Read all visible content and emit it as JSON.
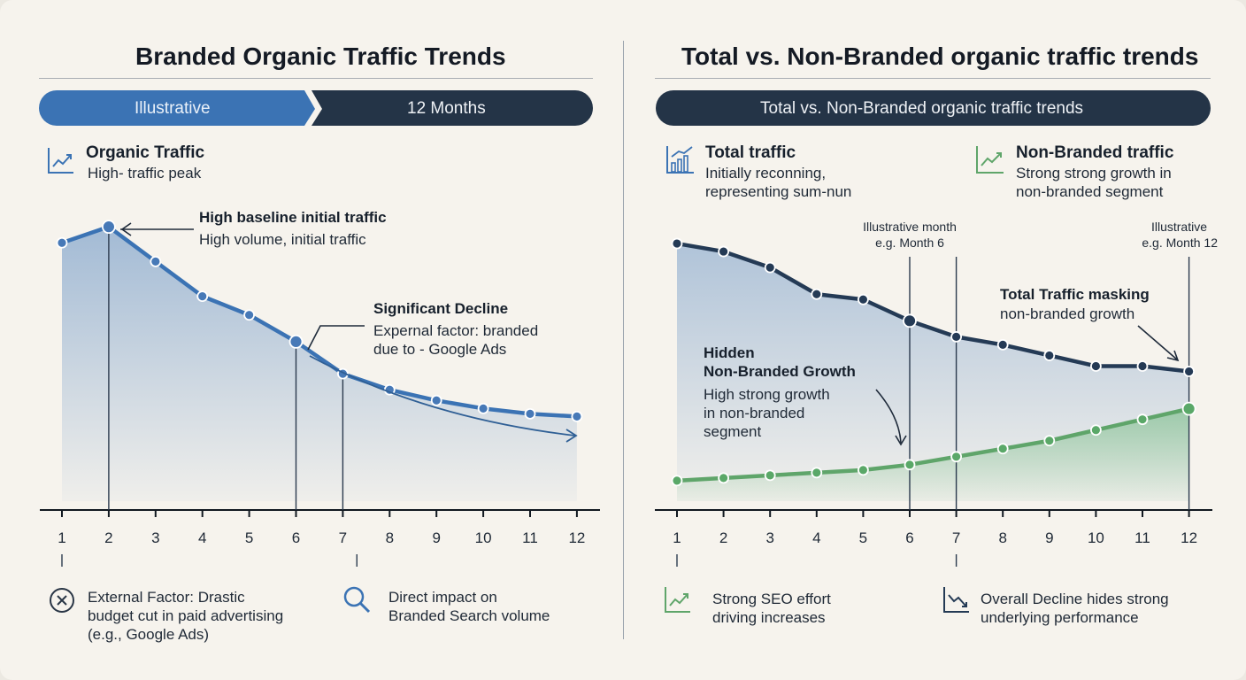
{
  "left": {
    "title": "Branded Organic Traffic Trends",
    "tab_left": "Illustrative",
    "tab_right": "12 Months",
    "legend_title": "Organic Traffic",
    "legend_sub": "High- traffic peak",
    "ann_peak_title": "High baseline initial traffic",
    "ann_peak_sub": "High volume, initial traffic",
    "ann_decline_title": "Significant Decline",
    "ann_decline_sub1": "Expernal factor: branded",
    "ann_decline_sub2": "due to - Google Ads",
    "foot1_line1": "External Factor: Drastic",
    "foot1_line2": "budget cut in paid advertising",
    "foot1_line3": "(e.g., Google Ads)",
    "foot2_line1": "Direct impact on",
    "foot2_line2": "Branded Search volume"
  },
  "right": {
    "title": "Total vs. Non-Branded organic traffic trends",
    "banner": "Total vs. Non-Branded organic traffic trends",
    "legend1_title": "Total traffic",
    "legend1_sub1": "Initially reconning,",
    "legend1_sub2": "representing sum-nun",
    "legend2_title": "Non-Branded traffic",
    "legend2_sub1": "Strong strong growth in",
    "legend2_sub2": "non-branded segment",
    "marker6_line1": "Illustrative month",
    "marker6_line2": "e.g. Month 6",
    "marker12_line1": "Illustrative",
    "marker12_line2": "e.g. Month 12",
    "ann_hidden_title1": "Hidden",
    "ann_hidden_title2": "Non-Branded Growth",
    "ann_hidden_sub1": "High strong growth",
    "ann_hidden_sub2": "in non-branded",
    "ann_hidden_sub3": "segment",
    "ann_mask_title": "Total Traffic masking",
    "ann_mask_sub": "non-branded growth",
    "foot1_line1": "Strong SEO effort",
    "foot1_line2": "driving increases",
    "foot2_line1": "Overall Decline hides strong",
    "foot2_line2": "underlying performance"
  },
  "colors": {
    "branded_line": "#3b73b4",
    "total_line": "#243a55",
    "nonbranded_line": "#5fa56a",
    "tab_blue": "#3b73b4",
    "tab_navy": "#243447"
  },
  "icons": {
    "left_legend": "trend-chart-icon",
    "left_foot1": "x-circle-icon",
    "left_foot2": "magnifier-icon",
    "right_legend1": "bar-chart-trend-icon",
    "right_legend2": "trend-chart-icon",
    "right_foot1": "trend-up-icon",
    "right_foot2": "trend-down-icon"
  },
  "chart_data": [
    {
      "type": "area",
      "title": "Branded Organic Traffic Trends",
      "x": [
        1,
        2,
        3,
        4,
        5,
        6,
        7,
        8,
        9,
        10,
        11,
        12
      ],
      "xticks": [
        "1",
        "2",
        "3",
        "4",
        "5",
        "6",
        "7",
        "8",
        "9",
        "10",
        "11",
        "12"
      ],
      "series": [
        {
          "name": "Organic Traffic",
          "values": [
            100,
            106,
            93,
            80,
            73,
            63,
            51,
            45,
            41,
            38,
            36,
            35
          ]
        }
      ],
      "ylim": [
        0,
        115
      ],
      "grid": false,
      "markers": [
        2,
        6,
        7
      ]
    },
    {
      "type": "area",
      "title": "Total vs. Non-Branded organic traffic trends",
      "x": [
        1,
        2,
        3,
        4,
        5,
        6,
        7,
        8,
        9,
        10,
        11,
        12
      ],
      "xticks": [
        "1",
        "2",
        "3",
        "4",
        "5",
        "6",
        "7",
        "8",
        "9",
        "10",
        "11",
        "12"
      ],
      "series": [
        {
          "name": "Total traffic",
          "values": [
            100,
            97,
            91,
            81,
            79,
            71,
            65,
            62,
            58,
            54,
            54,
            52
          ]
        },
        {
          "name": "Non-Branded traffic",
          "values": [
            11,
            12,
            13,
            14,
            15,
            17,
            20,
            23,
            26,
            30,
            34,
            38
          ]
        }
      ],
      "ylim": [
        0,
        105
      ],
      "grid": false,
      "markers": [
        6,
        7,
        12
      ]
    }
  ]
}
